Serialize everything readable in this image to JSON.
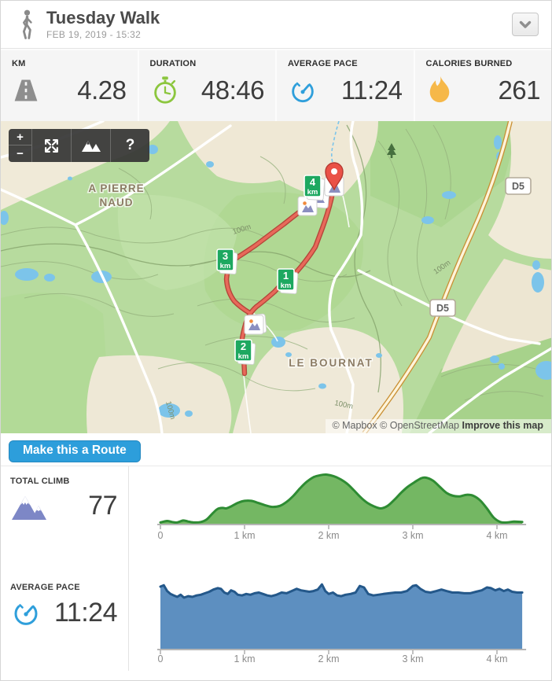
{
  "header": {
    "title": "Tuesday Walk",
    "date": "FEB 19, 2019  -  15:32"
  },
  "stats": {
    "items": [
      {
        "label": "KM",
        "value": "4.28",
        "icon": "road-icon",
        "icon_color": "#8e8e8e"
      },
      {
        "label": "DURATION",
        "value": "48:46",
        "icon": "stopwatch-icon",
        "icon_color": "#8cc63e"
      },
      {
        "label": "AVERAGE PACE",
        "value": "11:24",
        "icon": "speedometer-icon",
        "icon_color": "#2f9fdb"
      },
      {
        "label": "CALORIES BURNED",
        "value": "261",
        "icon": "flame-icon",
        "icon_color": "#f6b849"
      }
    ]
  },
  "map": {
    "controls": {
      "zoom_in": "+",
      "zoom_out": "−",
      "help": "?"
    },
    "labels": {
      "place_1_line_1": "A PIERRE",
      "place_1_line_2": "NAUD",
      "place_2": "LE BOURNAT",
      "road_shield": "D5",
      "contour_100m": "100m"
    },
    "km_unit": "km",
    "km_markers": [
      {
        "number": "1"
      },
      {
        "number": "2"
      },
      {
        "number": "3"
      },
      {
        "number": "4"
      }
    ],
    "attribution": {
      "mapbox": "© Mapbox",
      "osm": "© OpenStreetMap",
      "improve": "Improve this map"
    }
  },
  "actions": {
    "make_route": "Make this a Route"
  },
  "climb": {
    "label": "TOTAL CLIMB",
    "value": "77"
  },
  "pace": {
    "label": "AVERAGE PACE",
    "value": "11:24"
  },
  "chart_data": [
    {
      "type": "area",
      "title": "Elevation profile (total climb 77)",
      "x_unit": "km",
      "xlim": [
        0,
        4.3
      ],
      "ylim_pct": [
        0,
        100
      ],
      "x_tick_labels": [
        "0",
        "1 km",
        "2 km",
        "3 km",
        "4 km"
      ],
      "x_tick_km": [
        0,
        1,
        2,
        3,
        4
      ],
      "grid": false,
      "smooth": true,
      "fill": "#74b763",
      "stroke": "#2e8c33",
      "points_km_pct": [
        [
          0,
          4
        ],
        [
          0.08,
          7
        ],
        [
          0.14,
          5
        ],
        [
          0.2,
          4
        ],
        [
          0.27,
          8
        ],
        [
          0.33,
          6
        ],
        [
          0.4,
          4
        ],
        [
          0.48,
          5
        ],
        [
          0.55,
          10
        ],
        [
          0.62,
          22
        ],
        [
          0.68,
          31
        ],
        [
          0.74,
          33
        ],
        [
          0.78,
          32
        ],
        [
          0.84,
          36
        ],
        [
          0.92,
          43
        ],
        [
          1.0,
          47
        ],
        [
          1.08,
          47
        ],
        [
          1.16,
          43
        ],
        [
          1.25,
          38
        ],
        [
          1.33,
          35
        ],
        [
          1.42,
          37
        ],
        [
          1.5,
          45
        ],
        [
          1.58,
          57
        ],
        [
          1.66,
          72
        ],
        [
          1.74,
          85
        ],
        [
          1.82,
          94
        ],
        [
          1.9,
          98
        ],
        [
          1.98,
          99
        ],
        [
          2.06,
          96
        ],
        [
          2.14,
          90
        ],
        [
          2.22,
          81
        ],
        [
          2.3,
          68
        ],
        [
          2.38,
          54
        ],
        [
          2.46,
          43
        ],
        [
          2.54,
          36
        ],
        [
          2.62,
          32
        ],
        [
          2.7,
          37
        ],
        [
          2.78,
          49
        ],
        [
          2.86,
          63
        ],
        [
          2.94,
          75
        ],
        [
          3.02,
          84
        ],
        [
          3.1,
          92
        ],
        [
          3.16,
          93
        ],
        [
          3.24,
          87
        ],
        [
          3.32,
          75
        ],
        [
          3.4,
          63
        ],
        [
          3.48,
          57
        ],
        [
          3.56,
          56
        ],
        [
          3.64,
          59
        ],
        [
          3.72,
          57
        ],
        [
          3.8,
          48
        ],
        [
          3.88,
          32
        ],
        [
          3.96,
          14
        ],
        [
          4.04,
          5
        ],
        [
          4.12,
          4
        ],
        [
          4.2,
          6
        ],
        [
          4.3,
          5
        ]
      ]
    },
    {
      "type": "area",
      "title": "Pace over distance (average 11:24)",
      "x_unit": "km",
      "xlim": [
        0,
        4.3
      ],
      "ylim_pct": [
        0,
        100
      ],
      "x_tick_labels": [
        "0",
        "1 km",
        "2 km",
        "3 km",
        "4 km"
      ],
      "x_tick_km": [
        0,
        1,
        2,
        3,
        4
      ],
      "grid": false,
      "smooth": false,
      "fill": "#5d8fc0",
      "stroke": "#24588a",
      "points_km_pct": [
        [
          0,
          86
        ],
        [
          0.04,
          88
        ],
        [
          0.08,
          80
        ],
        [
          0.12,
          76
        ],
        [
          0.16,
          74
        ],
        [
          0.2,
          72
        ],
        [
          0.24,
          75
        ],
        [
          0.28,
          71
        ],
        [
          0.33,
          73
        ],
        [
          0.38,
          72
        ],
        [
          0.43,
          74
        ],
        [
          0.48,
          75
        ],
        [
          0.53,
          77
        ],
        [
          0.58,
          79
        ],
        [
          0.63,
          82
        ],
        [
          0.68,
          84
        ],
        [
          0.72,
          83
        ],
        [
          0.76,
          78
        ],
        [
          0.8,
          76
        ],
        [
          0.84,
          81
        ],
        [
          0.88,
          79
        ],
        [
          0.92,
          75
        ],
        [
          0.97,
          74
        ],
        [
          1.02,
          76
        ],
        [
          1.07,
          75
        ],
        [
          1.12,
          77
        ],
        [
          1.17,
          78
        ],
        [
          1.22,
          76
        ],
        [
          1.27,
          74
        ],
        [
          1.32,
          73
        ],
        [
          1.38,
          75
        ],
        [
          1.44,
          78
        ],
        [
          1.5,
          77
        ],
        [
          1.56,
          80
        ],
        [
          1.62,
          83
        ],
        [
          1.67,
          81
        ],
        [
          1.72,
          80
        ],
        [
          1.77,
          79
        ],
        [
          1.82,
          80
        ],
        [
          1.87,
          82
        ],
        [
          1.92,
          89
        ],
        [
          1.96,
          80
        ],
        [
          2.0,
          76
        ],
        [
          2.05,
          78
        ],
        [
          2.1,
          74
        ],
        [
          2.15,
          73
        ],
        [
          2.2,
          75
        ],
        [
          2.26,
          76
        ],
        [
          2.32,
          78
        ],
        [
          2.37,
          87
        ],
        [
          2.42,
          85
        ],
        [
          2.47,
          76
        ],
        [
          2.53,
          74
        ],
        [
          2.59,
          75
        ],
        [
          2.65,
          76
        ],
        [
          2.72,
          77
        ],
        [
          2.79,
          78
        ],
        [
          2.86,
          78
        ],
        [
          2.93,
          80
        ],
        [
          3.0,
          87
        ],
        [
          3.04,
          88
        ],
        [
          3.09,
          83
        ],
        [
          3.15,
          79
        ],
        [
          3.21,
          78
        ],
        [
          3.28,
          80
        ],
        [
          3.34,
          82
        ],
        [
          3.4,
          80
        ],
        [
          3.47,
          78
        ],
        [
          3.54,
          78
        ],
        [
          3.61,
          77
        ],
        [
          3.68,
          77
        ],
        [
          3.75,
          79
        ],
        [
          3.82,
          81
        ],
        [
          3.88,
          85
        ],
        [
          3.93,
          84
        ],
        [
          3.98,
          81
        ],
        [
          4.03,
          83
        ],
        [
          4.08,
          80
        ],
        [
          4.13,
          82
        ],
        [
          4.18,
          79
        ],
        [
          4.24,
          78
        ],
        [
          4.3,
          78
        ]
      ]
    }
  ]
}
